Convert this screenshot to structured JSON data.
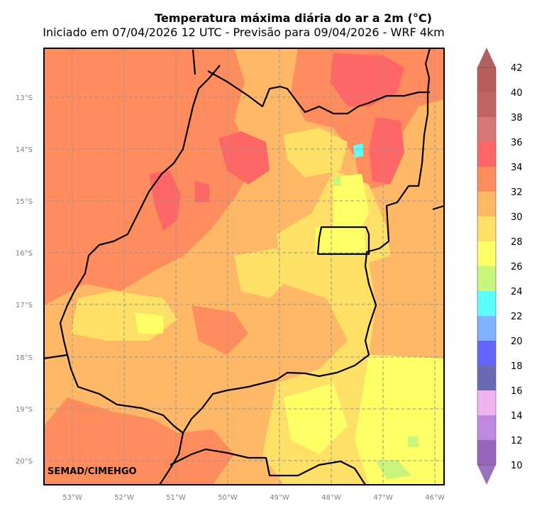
{
  "title": "Temperatura máxima diária do ar a 2m (°C)",
  "subtitle": "Iniciado em 07/04/2026 12 UTC - Previsão para 09/04/2026 - WRF 4km",
  "credit": "SEMAD/CIMEHGO",
  "map": {
    "lon_range": [
      -53.55,
      -45.85
    ],
    "lat_range": [
      -20.48,
      -12.05
    ],
    "lat_ticks": [
      "13°S",
      "14°S",
      "15°S",
      "16°S",
      "17°S",
      "18°S",
      "19°S",
      "20°S"
    ],
    "lat_values": [
      -13,
      -14,
      -15,
      -16,
      -17,
      -18,
      -19,
      -20
    ],
    "lon_ticks": [
      "53°W",
      "52°W",
      "51°W",
      "50°W",
      "49°W",
      "48°W",
      "47°W",
      "46°W"
    ],
    "lon_values": [
      -53,
      -52,
      -51,
      -50,
      -49,
      -48,
      -47,
      -46
    ],
    "gridlines": true
  },
  "colorbar": {
    "labels": [
      "10",
      "12",
      "14",
      "16",
      "18",
      "20",
      "22",
      "24",
      "26",
      "28",
      "30",
      "32",
      "34",
      "36",
      "38",
      "40",
      "42"
    ],
    "colors": [
      "#9467bd",
      "#c089e0",
      "#f0b3f0",
      "#6a6ab4",
      "#6464ff",
      "#7fb2ff",
      "#5cffff",
      "#c8f57a",
      "#ffff66",
      "#ffe066",
      "#ffb866",
      "#ff8c5c",
      "#ff6666",
      "#d97777",
      "#c06464",
      "#b85c5c"
    ],
    "over_color": "#b06060",
    "under_color": "#9a72c0"
  },
  "colors": {
    "orange": "#ffb866",
    "red": "#ff8c5c",
    "hot": "#ff6666",
    "yellow": "#ffe066",
    "lightyellow": "#ffff66",
    "cyan": "#5cffff"
  }
}
